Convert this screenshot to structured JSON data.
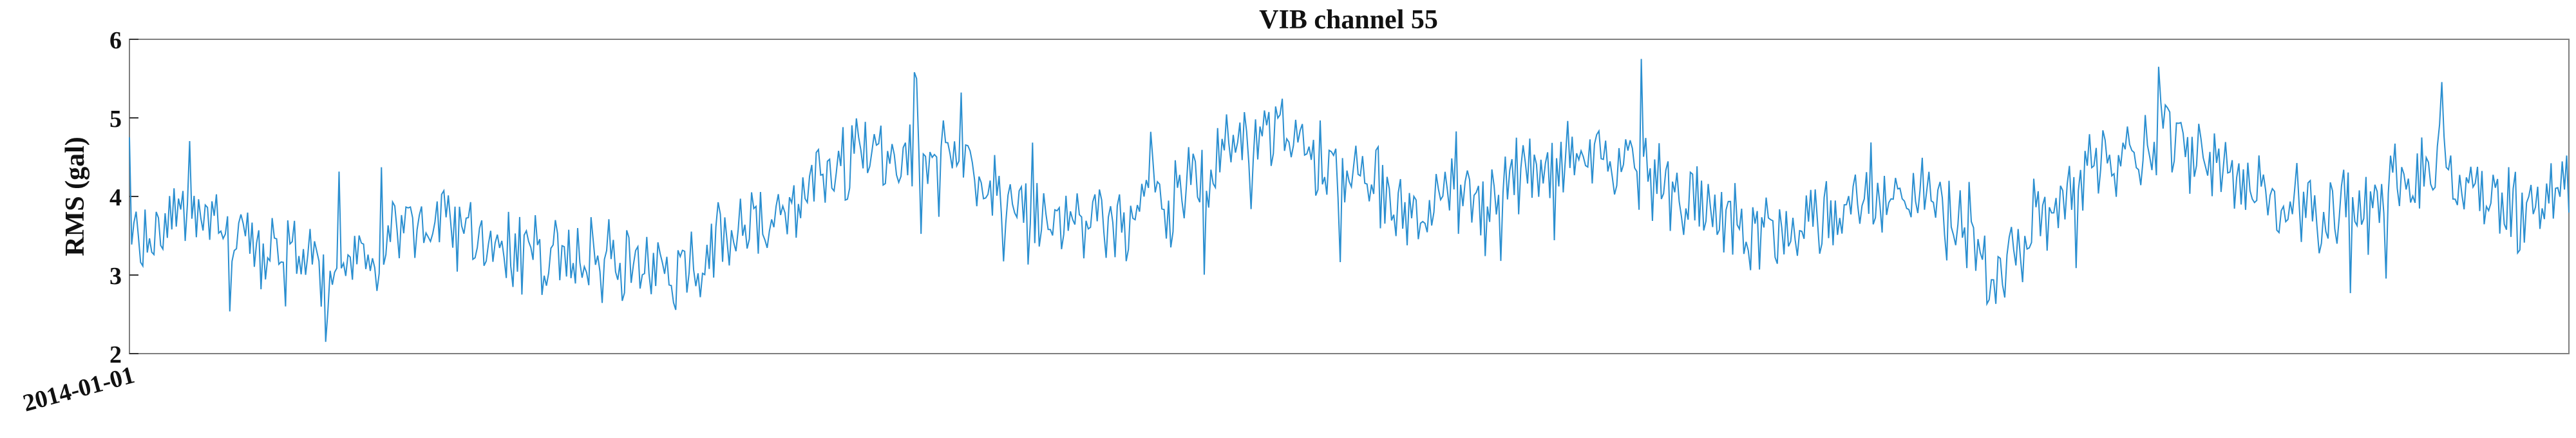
{
  "chart_data": {
    "type": "line",
    "title": "VIB channel 55",
    "xlabel": "",
    "ylabel": "RMS (gal)",
    "ylim": [
      2,
      6
    ],
    "yticks": [
      2,
      3,
      4,
      5,
      6
    ],
    "xticks": [
      "2014-01-01"
    ],
    "x_domain_days": 1095,
    "grid": false,
    "series": [
      {
        "color": "#2b8fd0",
        "anchors": [
          [
            0,
            3.5
          ],
          [
            30,
            3.8
          ],
          [
            60,
            3.3
          ],
          [
            90,
            3.1
          ],
          [
            110,
            3.4
          ],
          [
            140,
            3.7
          ],
          [
            170,
            3.3
          ],
          [
            200,
            3.2
          ],
          [
            230,
            3.1
          ],
          [
            250,
            3.0
          ],
          [
            270,
            3.6
          ],
          [
            290,
            3.8
          ],
          [
            305,
            4.1
          ],
          [
            315,
            4.4
          ],
          [
            340,
            4.6
          ],
          [
            365,
            4.5
          ],
          [
            385,
            4.2
          ],
          [
            410,
            3.8
          ],
          [
            430,
            3.6
          ],
          [
            450,
            3.7
          ],
          [
            470,
            3.9
          ],
          [
            490,
            4.5
          ],
          [
            505,
            4.7
          ],
          [
            515,
            4.9
          ],
          [
            530,
            4.6
          ],
          [
            550,
            4.3
          ],
          [
            565,
            4.1
          ],
          [
            575,
            3.8
          ],
          [
            600,
            4.0
          ],
          [
            620,
            4.2
          ],
          [
            640,
            4.4
          ],
          [
            660,
            4.5
          ],
          [
            680,
            4.3
          ],
          [
            700,
            4.0
          ],
          [
            720,
            3.7
          ],
          [
            735,
            3.4
          ],
          [
            750,
            3.6
          ],
          [
            775,
            3.9
          ],
          [
            800,
            4.0
          ],
          [
            815,
            3.8
          ],
          [
            830,
            3.3
          ],
          [
            840,
            3.0
          ],
          [
            855,
            3.6
          ],
          [
            870,
            4.0
          ],
          [
            885,
            4.5
          ],
          [
            910,
            4.7
          ],
          [
            935,
            4.5
          ],
          [
            955,
            4.2
          ],
          [
            968,
            3.9
          ],
          [
            980,
            3.7
          ],
          [
            1000,
            3.9
          ],
          [
            1020,
            4.2
          ],
          [
            1040,
            4.4
          ],
          [
            1055,
            4.2
          ],
          [
            1070,
            3.8
          ],
          [
            1090,
            4.0
          ],
          [
            1095,
            4.1
          ]
        ],
        "noise_amplitude": 0.7,
        "points": 1095
      }
    ]
  }
}
